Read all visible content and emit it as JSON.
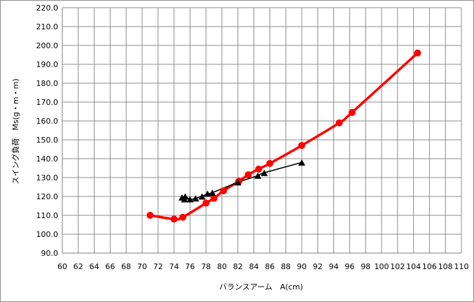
{
  "chart_data": {
    "type": "scatter",
    "xlabel": "バランスアーム　A(cm)",
    "ylabel": "スイング負荷　Ms(g・m・m)",
    "xlim": [
      60,
      110
    ],
    "ylim": [
      90,
      220
    ],
    "x_step": 2,
    "y_step": 10,
    "grid": true,
    "x_ticks": [
      "60",
      "62",
      "64",
      "66",
      "68",
      "70",
      "72",
      "74",
      "76",
      "78",
      "80",
      "82",
      "84",
      "86",
      "88",
      "90",
      "92",
      "94",
      "96",
      "98",
      "100",
      "102",
      "104",
      "106",
      "108",
      "110"
    ],
    "y_ticks": [
      "90.0",
      "100.0",
      "110.0",
      "120.0",
      "130.0",
      "140.0",
      "150.0",
      "160.0",
      "170.0",
      "180.0",
      "190.0",
      "200.0",
      "210.0",
      "220.0"
    ],
    "series": [
      {
        "marker": "circle",
        "color": "#ff0000",
        "line_color": "#ff0000",
        "points": [
          [
            71.0,
            110.0
          ],
          [
            74.0,
            108.0
          ],
          [
            75.1,
            109.0
          ],
          [
            78.0,
            116.5
          ],
          [
            79.0,
            119.0
          ],
          [
            80.2,
            123.0
          ],
          [
            82.1,
            128.0
          ],
          [
            83.3,
            131.5
          ],
          [
            84.6,
            134.5
          ],
          [
            86.0,
            137.5
          ],
          [
            90.0,
            147.0
          ],
          [
            94.7,
            159.0
          ],
          [
            96.3,
            164.5
          ],
          [
            104.5,
            196.0
          ]
        ]
      },
      {
        "marker": "triangle",
        "color": "#000000",
        "line_color": "#000000",
        "points": [
          [
            75.0,
            119.5
          ],
          [
            75.4,
            120.0
          ],
          [
            75.3,
            118.5
          ],
          [
            76.0,
            118.5
          ],
          [
            76.7,
            119.0
          ],
          [
            77.5,
            120.0
          ],
          [
            78.2,
            121.5
          ],
          [
            78.8,
            122.0
          ],
          [
            82.0,
            127.5
          ],
          [
            84.5,
            131.0
          ],
          [
            85.3,
            132.5
          ],
          [
            90.0,
            138.0
          ]
        ]
      }
    ]
  }
}
